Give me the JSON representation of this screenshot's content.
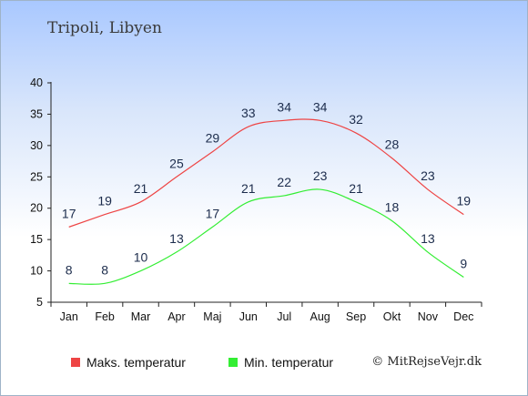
{
  "title": "Tripoli, Libyen",
  "copyright": "© MitRejseVejr.dk",
  "chart_data": {
    "type": "line",
    "categories": [
      "Jan",
      "Feb",
      "Mar",
      "Apr",
      "Maj",
      "Jun",
      "Jul",
      "Aug",
      "Sep",
      "Okt",
      "Nov",
      "Dec"
    ],
    "series": [
      {
        "name": "Maks. temperatur",
        "color": "#ee4444",
        "values": [
          17,
          19,
          21,
          25,
          29,
          33,
          34,
          34,
          32,
          28,
          23,
          19
        ]
      },
      {
        "name": "Min. temperatur",
        "color": "#33ee33",
        "values": [
          8,
          8,
          10,
          13,
          17,
          21,
          22,
          23,
          21,
          18,
          13,
          9
        ]
      }
    ],
    "ylim": [
      5,
      40
    ],
    "yticks": [
      5,
      10,
      15,
      20,
      25,
      30,
      35,
      40
    ],
    "grid": false,
    "legend": "bottom-left"
  }
}
